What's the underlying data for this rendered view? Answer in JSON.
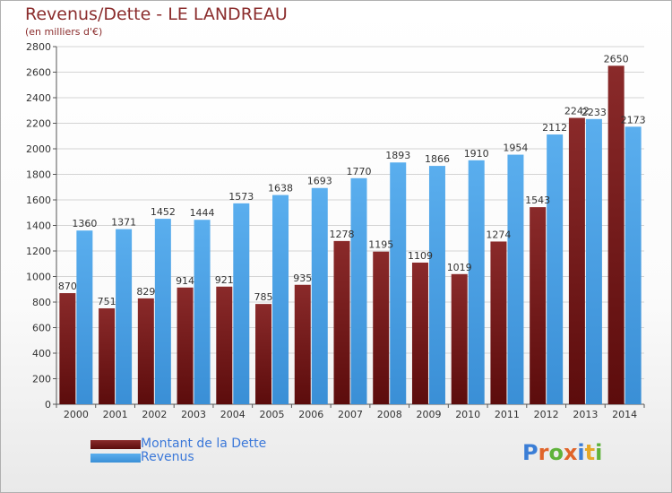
{
  "title": "Revenus/Dette - LE LANDREAU",
  "subtitle": "(en milliers d'€)",
  "logo": "Proxiti",
  "colors": {
    "dette": "#7a1f1f",
    "revenus": "#4fa3e6",
    "title": "#8b2d2d",
    "legend_text": "#3b78d9",
    "grid": "#cfcfcf"
  },
  "legend": [
    {
      "label": "Montant de la Dette",
      "series": "dette"
    },
    {
      "label": "Revenus",
      "series": "revenus"
    }
  ],
  "chart_data": {
    "type": "bar",
    "categories": [
      "2000",
      "2001",
      "2002",
      "2003",
      "2004",
      "2005",
      "2006",
      "2007",
      "2008",
      "2009",
      "2010",
      "2011",
      "2012",
      "2013",
      "2014"
    ],
    "series": [
      {
        "name": "Montant de la Dette",
        "values": [
          870,
          751,
          829,
          914,
          921,
          785,
          935,
          1278,
          1195,
          1109,
          1019,
          1274,
          1543,
          2242,
          2650
        ]
      },
      {
        "name": "Revenus",
        "values": [
          1360,
          1371,
          1452,
          1444,
          1573,
          1638,
          1693,
          1770,
          1893,
          1866,
          1910,
          1954,
          2112,
          2233,
          2173
        ]
      }
    ],
    "ylim": [
      0,
      2800
    ],
    "yticks": [
      0,
      200,
      400,
      600,
      800,
      1000,
      1200,
      1400,
      1600,
      1800,
      2000,
      2200,
      2400,
      2600,
      2800
    ],
    "grid": true,
    "legend_position": "bottom-left"
  }
}
